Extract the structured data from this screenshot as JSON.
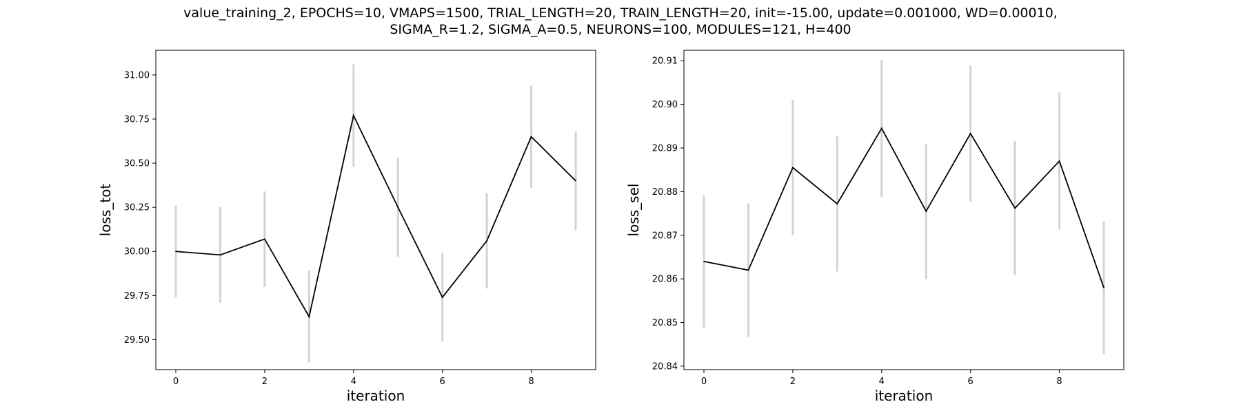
{
  "figure": {
    "title_line1": "value_training_2, EPOCHS=10, VMAPS=1500, TRIAL_LENGTH=20, TRAIN_LENGTH=20, init=-15.00, update=0.001000, WD=0.00010,",
    "title_line2": "SIGMA_R=1.2, SIGMA_A=0.5, NEURONS=100, MODULES=121, H=400"
  },
  "colors": {
    "line": "#000000",
    "errorbar": "#d3d3d3",
    "axes": "#000000",
    "background": "#ffffff"
  },
  "chart_data": [
    {
      "type": "line",
      "xlabel": "iteration",
      "ylabel": "loss_tot",
      "xlim": [
        -0.45,
        9.45
      ],
      "ylim": [
        29.33,
        31.14
      ],
      "x_ticks": [
        0,
        2,
        4,
        6,
        8
      ],
      "y_ticks": [
        29.5,
        29.75,
        30.0,
        30.25,
        30.5,
        30.75,
        31.0
      ],
      "y_tick_labels": [
        "29.50",
        "29.75",
        "30.00",
        "30.25",
        "30.50",
        "30.75",
        "31.00"
      ],
      "grid": false,
      "series": [
        {
          "x": [
            0,
            1,
            2,
            3,
            4,
            5,
            6,
            7,
            8,
            9
          ],
          "values": [
            30.0,
            29.98,
            30.07,
            29.63,
            30.77,
            30.25,
            29.74,
            30.06,
            30.65,
            30.4
          ],
          "error": [
            0.26,
            0.27,
            0.27,
            0.26,
            0.29,
            0.28,
            0.25,
            0.27,
            0.29,
            0.28
          ]
        }
      ]
    },
    {
      "type": "line",
      "xlabel": "iteration",
      "ylabel": "loss_sel",
      "xlim": [
        -0.45,
        9.45
      ],
      "ylim": [
        20.8392,
        20.9124
      ],
      "x_ticks": [
        0,
        2,
        4,
        6,
        8
      ],
      "y_ticks": [
        20.84,
        20.85,
        20.86,
        20.87,
        20.88,
        20.89,
        20.9,
        20.91
      ],
      "y_tick_labels": [
        "20.84",
        "20.85",
        "20.86",
        "20.87",
        "20.88",
        "20.89",
        "20.90",
        "20.91"
      ],
      "grid": false,
      "series": [
        {
          "x": [
            0,
            1,
            2,
            3,
            4,
            5,
            6,
            7,
            8,
            9
          ],
          "values": [
            20.864,
            20.862,
            20.8855,
            20.8772,
            20.8945,
            20.8755,
            20.8933,
            20.8762,
            20.887,
            20.858
          ],
          "error": [
            0.0152,
            0.0153,
            0.0155,
            0.0155,
            0.0157,
            0.0155,
            0.0156,
            0.0154,
            0.0157,
            0.0152
          ]
        }
      ]
    }
  ]
}
